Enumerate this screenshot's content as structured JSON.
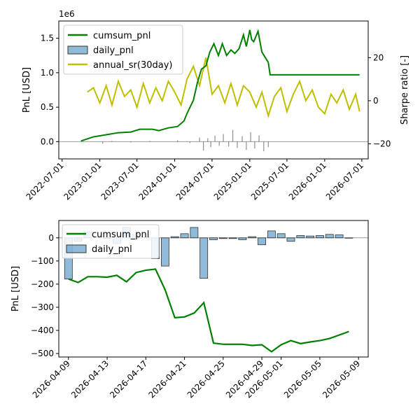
{
  "chart_data": [
    {
      "type": "line",
      "title": "",
      "xlabel": "",
      "ylabel": "PnL [USD]",
      "y2label": "Sharpe ratio [-]",
      "y_offset_text": "1e6",
      "ylim": [
        -0.25,
        1.75
      ],
      "y2lim": [
        -27,
        37
      ],
      "xlim": [
        "2022-06-15",
        "2026-08-01"
      ],
      "x_ticks": [
        "2022-07-01",
        "2023-01-01",
        "2023-07-01",
        "2024-01-01",
        "2024-07-01",
        "2025-01-01",
        "2025-07-01",
        "2026-01-01",
        "2026-07-01"
      ],
      "y_ticks": [
        0.0,
        0.5,
        1.0,
        1.5
      ],
      "y_tick_labels": [
        "0.0",
        "0.5",
        "1.0",
        "1.5"
      ],
      "y2_ticks": [
        -20,
        0,
        20
      ],
      "y2_tick_labels": [
        "−20",
        "0",
        "20"
      ],
      "legend": {
        "position": "top-left",
        "entries": [
          "cumsum_pnl",
          "daily_pnl",
          "annual_sr(30day)"
        ]
      },
      "colors": {
        "cumsum": "#008000",
        "daily": "#1f77b4",
        "sharpe": "#bfbf00"
      },
      "series": [
        {
          "name": "cumsum_pnl",
          "axis": "left",
          "x": [
            "2022-10-01",
            "2022-12-01",
            "2023-02-01",
            "2023-04-01",
            "2023-06-01",
            "2023-07-15",
            "2023-09-15",
            "2023-10-15",
            "2023-12-01",
            "2024-01-15",
            "2024-02-15",
            "2024-03-01",
            "2024-04-01",
            "2024-04-20",
            "2024-05-10",
            "2024-06-01",
            "2024-06-20",
            "2024-07-10",
            "2024-08-01",
            "2024-08-20",
            "2024-09-10",
            "2024-10-01",
            "2024-10-20",
            "2024-11-10",
            "2024-12-01",
            "2024-12-15",
            "2025-01-01",
            "2025-01-10",
            "2025-01-20",
            "2025-02-10",
            "2025-03-01",
            "2025-04-01",
            "2025-04-10",
            "2025-06-01",
            "2026-06-20"
          ],
          "values": [
            0.01,
            0.07,
            0.1,
            0.13,
            0.14,
            0.18,
            0.18,
            0.16,
            0.2,
            0.22,
            0.3,
            0.41,
            0.6,
            0.85,
            1.05,
            1.1,
            1.3,
            1.42,
            1.25,
            1.42,
            1.25,
            1.33,
            1.28,
            1.35,
            1.55,
            1.38,
            1.62,
            1.48,
            1.45,
            1.6,
            1.3,
            1.15,
            0.97,
            0.97,
            0.97
          ]
        },
        {
          "name": "annual_sr(30day)",
          "axis": "right",
          "x": [
            "2022-11-01",
            "2022-12-01",
            "2023-01-01",
            "2023-02-01",
            "2023-03-01",
            "2023-04-01",
            "2023-05-01",
            "2023-06-01",
            "2023-07-01",
            "2023-08-01",
            "2023-09-01",
            "2023-10-01",
            "2023-11-01",
            "2023-12-01",
            "2024-01-01",
            "2024-02-01",
            "2024-03-01",
            "2024-04-01",
            "2024-05-01",
            "2024-06-01",
            "2024-07-01",
            "2024-08-01",
            "2024-09-01",
            "2024-10-01",
            "2024-11-01",
            "2024-12-01",
            "2025-01-01",
            "2025-02-01",
            "2025-03-01",
            "2025-04-01",
            "2025-05-01",
            "2025-06-01",
            "2025-07-01",
            "2025-08-01",
            "2025-09-01",
            "2025-10-01",
            "2025-11-01",
            "2025-12-01",
            "2026-01-01",
            "2026-02-01",
            "2026-03-01",
            "2026-04-01",
            "2026-05-01",
            "2026-06-01",
            "2026-06-20"
          ],
          "values": [
            4,
            6,
            -1,
            7,
            -2,
            9,
            2,
            5,
            -3,
            8,
            -1,
            6,
            0,
            9,
            4,
            -2,
            10,
            16,
            7,
            20,
            3,
            7,
            -1,
            8,
            -2,
            7,
            4,
            -3,
            4,
            -7,
            2,
            6,
            -5,
            3,
            9,
            0,
            5,
            -3,
            -6,
            3,
            -1,
            5,
            -4,
            3,
            -5
          ]
        },
        {
          "name": "daily_pnl",
          "axis": "left",
          "type": "bar",
          "x": [
            "2023-01-15",
            "2023-03-01",
            "2023-06-01",
            "2023-09-01",
            "2024-01-15",
            "2024-03-15",
            "2024-05-01",
            "2024-05-20",
            "2024-06-10",
            "2024-06-25",
            "2024-07-15",
            "2024-08-05",
            "2024-08-25",
            "2024-09-20",
            "2024-10-10",
            "2024-11-01",
            "2024-11-25",
            "2024-12-15",
            "2025-01-05",
            "2025-01-25",
            "2025-02-15",
            "2025-03-10",
            "2025-04-01"
          ],
          "values": [
            -0.03,
            0.01,
            -0.01,
            0.01,
            0.02,
            -0.02,
            0.06,
            -0.13,
            0.05,
            -0.08,
            0.09,
            -0.06,
            0.11,
            -0.07,
            0.17,
            -0.09,
            0.08,
            -0.12,
            0.14,
            -0.1,
            0.09,
            -0.14,
            -0.08
          ]
        }
      ]
    },
    {
      "type": "bar",
      "title": "",
      "xlabel": "",
      "ylabel": "PnL [USD]",
      "ylim": [
        -515,
        75
      ],
      "xlim": [
        "2026-04-08",
        "2026-05-10"
      ],
      "x_ticks": [
        "2026-04-09",
        "2026-04-13",
        "2026-04-17",
        "2026-04-21",
        "2026-04-25",
        "2026-04-29",
        "2026-05-01",
        "2026-05-05",
        "2026-05-09"
      ],
      "y_ticks": [
        0,
        -100,
        -200,
        -300,
        -400,
        -500
      ],
      "y_tick_labels": [
        "0",
        "−100",
        "−200",
        "−300",
        "−400",
        "−500"
      ],
      "legend": {
        "position": "top-left",
        "entries": [
          "cumsum_pnl",
          "daily_pnl"
        ]
      },
      "colors": {
        "cumsum": "#008000",
        "daily": "#1f77b4"
      },
      "series": [
        {
          "name": "daily_pnl",
          "type": "bar",
          "x": [
            "2026-04-09",
            "2026-04-10",
            "2026-04-11",
            "2026-04-12",
            "2026-04-13",
            "2026-04-14",
            "2026-04-15",
            "2026-04-16",
            "2026-04-17",
            "2026-04-18",
            "2026-04-19",
            "2026-04-20",
            "2026-04-21",
            "2026-04-22",
            "2026-04-23",
            "2026-04-24",
            "2026-04-25",
            "2026-04-26",
            "2026-04-27",
            "2026-04-28",
            "2026-04-29",
            "2026-04-30",
            "2026-05-01",
            "2026-05-02",
            "2026-05-03",
            "2026-05-04",
            "2026-05-05",
            "2026-05-06",
            "2026-05-07",
            "2026-05-08"
          ],
          "values": [
            -178,
            -15,
            25,
            3,
            -3,
            -25,
            45,
            15,
            5,
            -90,
            -122,
            5,
            18,
            45,
            -175,
            -8,
            -3,
            -3,
            -8,
            5,
            -30,
            30,
            18,
            -15,
            10,
            8,
            10,
            15,
            13,
            0
          ]
        },
        {
          "name": "cumsum_pnl",
          "type": "line",
          "x": [
            "2026-04-09",
            "2026-04-10",
            "2026-04-11",
            "2026-04-12",
            "2026-04-13",
            "2026-04-14",
            "2026-04-15",
            "2026-04-16",
            "2026-04-17",
            "2026-04-18",
            "2026-04-19",
            "2026-04-20",
            "2026-04-21",
            "2026-04-22",
            "2026-04-23",
            "2026-04-24",
            "2026-04-25",
            "2026-04-26",
            "2026-04-27",
            "2026-04-28",
            "2026-04-29",
            "2026-04-30",
            "2026-05-01",
            "2026-05-02",
            "2026-05-03",
            "2026-05-04",
            "2026-05-05",
            "2026-05-06",
            "2026-05-07",
            "2026-05-08"
          ],
          "values": [
            -178,
            -193,
            -168,
            -168,
            -170,
            -162,
            -190,
            -150,
            -140,
            -135,
            -225,
            -345,
            -342,
            -325,
            -280,
            -455,
            -460,
            -460,
            -460,
            -465,
            -462,
            -492,
            -462,
            -444,
            -457,
            -450,
            -444,
            -435,
            -420,
            -405
          ]
        }
      ]
    }
  ]
}
